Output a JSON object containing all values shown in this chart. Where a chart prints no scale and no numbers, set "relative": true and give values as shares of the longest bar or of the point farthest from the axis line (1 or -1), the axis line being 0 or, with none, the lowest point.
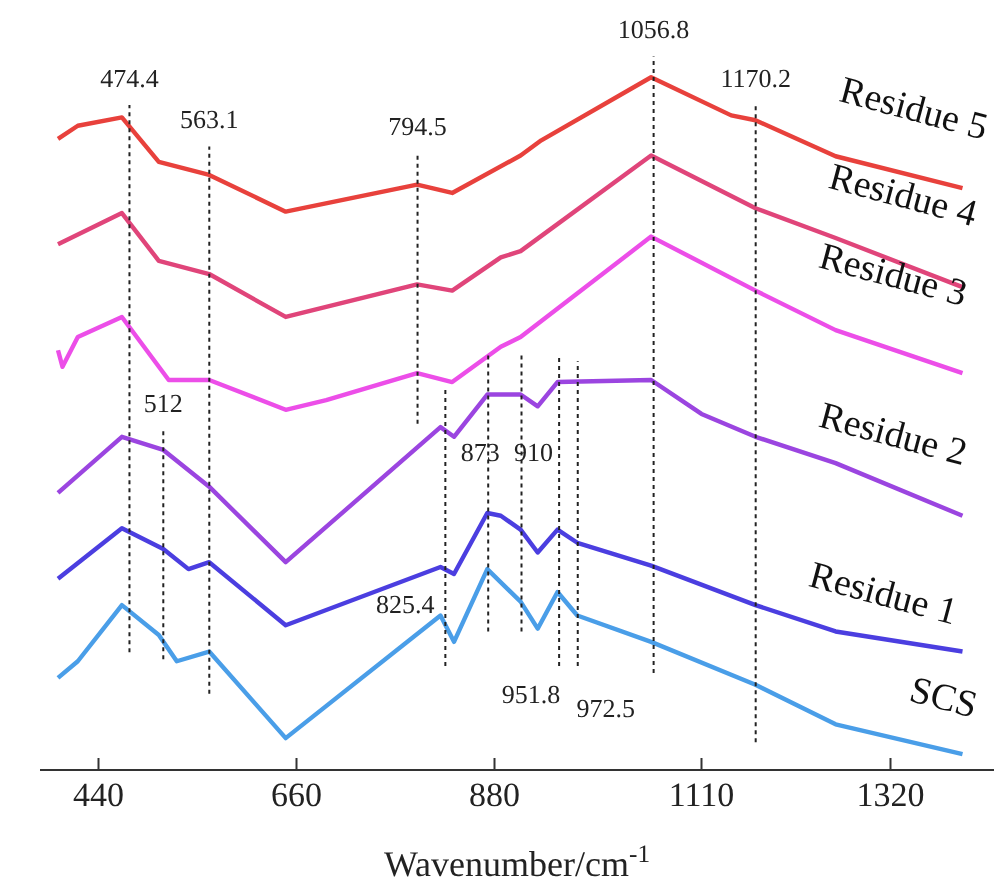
{
  "chart_data": {
    "type": "line",
    "relative": true,
    "xlabel": "Wavenumber/cm$^{-1}$",
    "xlim": [
      375,
      1435
    ],
    "xticks": [
      440,
      660,
      880,
      1110,
      1320
    ],
    "line_style": "solid",
    "marker": "none",
    "series": [
      {
        "name": "Residue 5",
        "color": "#e8413c",
        "x": [
          395,
          417,
          466,
          507,
          563,
          648,
          794,
          833,
          909,
          932,
          1054,
          1143,
          1170,
          1259,
          1400
        ],
        "values": [
          0.911,
          0.93,
          0.942,
          0.878,
          0.859,
          0.806,
          0.845,
          0.833,
          0.887,
          0.909,
          1.0,
          0.945,
          0.938,
          0.886,
          0.84
        ]
      },
      {
        "name": "Residue 4",
        "color": "#e0457a",
        "x": [
          395,
          466,
          507,
          563,
          648,
          794,
          833,
          887,
          909,
          1054,
          1170,
          1259,
          1400
        ],
        "values": [
          0.759,
          0.804,
          0.735,
          0.716,
          0.654,
          0.701,
          0.692,
          0.74,
          0.749,
          0.887,
          0.811,
          0.768,
          0.697
        ]
      },
      {
        "name": "Residue 3",
        "color": "#ec4ee8",
        "x": [
          395,
          400,
          417,
          466,
          518,
          563,
          648,
          693,
          794,
          833,
          887,
          909,
          1054,
          1170,
          1259,
          1400
        ],
        "values": [
          0.606,
          0.582,
          0.625,
          0.654,
          0.563,
          0.563,
          0.52,
          0.534,
          0.573,
          0.56,
          0.611,
          0.625,
          0.77,
          0.692,
          0.635,
          0.573
        ]
      },
      {
        "name": "Residue 2",
        "color": "#9b45e0",
        "x": [
          395,
          466,
          512,
          563,
          648,
          820,
          835,
          872,
          909,
          928,
          950,
          1054,
          1110,
          1170,
          1259,
          1400
        ],
        "values": [
          0.4,
          0.481,
          0.462,
          0.409,
          0.3,
          0.495,
          0.481,
          0.542,
          0.542,
          0.525,
          0.56,
          0.563,
          0.514,
          0.481,
          0.443,
          0.367
        ]
      },
      {
        "name": "Residue 1",
        "color": "#4b3ee0",
        "x": [
          395,
          466,
          512,
          540,
          563,
          648,
          820,
          835,
          872,
          887,
          909,
          928,
          950,
          972,
          1054,
          1170,
          1259,
          1400
        ],
        "values": [
          0.276,
          0.349,
          0.319,
          0.29,
          0.3,
          0.209,
          0.293,
          0.283,
          0.371,
          0.367,
          0.347,
          0.314,
          0.347,
          0.328,
          0.295,
          0.238,
          0.2,
          0.171
        ]
      },
      {
        "name": "SCS",
        "color": "#4a9ee8",
        "x": [
          395,
          417,
          466,
          507,
          527,
          563,
          648,
          820,
          835,
          872,
          909,
          928,
          950,
          972,
          1054,
          1170,
          1259,
          1400
        ],
        "values": [
          0.133,
          0.157,
          0.238,
          0.195,
          0.157,
          0.171,
          0.046,
          0.223,
          0.185,
          0.29,
          0.243,
          0.204,
          0.257,
          0.223,
          0.185,
          0.123,
          0.066,
          0.023
        ]
      }
    ],
    "ref_lines": [
      {
        "axis": "x",
        "value": 474.4,
        "label": "474.4",
        "line_style": "dotted"
      },
      {
        "axis": "x",
        "value": 563.1,
        "label": "563.1",
        "line_style": "dotted"
      },
      {
        "axis": "x",
        "value": 794.5,
        "label": "794.5",
        "line_style": "dotted"
      },
      {
        "axis": "x",
        "value": 1056.8,
        "label": "1056.8",
        "line_style": "dotted"
      },
      {
        "axis": "x",
        "value": 1170.2,
        "label": "1170.2",
        "line_style": "dotted"
      },
      {
        "axis": "x",
        "value": 512,
        "label": "512",
        "line_style": "dotted"
      },
      {
        "axis": "x",
        "value": 825.4,
        "label": "825.4",
        "line_style": "dotted"
      },
      {
        "axis": "x",
        "value": 873,
        "label": "873",
        "line_style": "dotted"
      },
      {
        "axis": "x",
        "value": 910,
        "label": "910",
        "line_style": "dotted"
      },
      {
        "axis": "x",
        "value": 951.8,
        "label": "951.8",
        "line_style": "dotted"
      },
      {
        "axis": "x",
        "value": 972.5,
        "label": "972.5",
        "line_style": "dotted"
      }
    ]
  }
}
